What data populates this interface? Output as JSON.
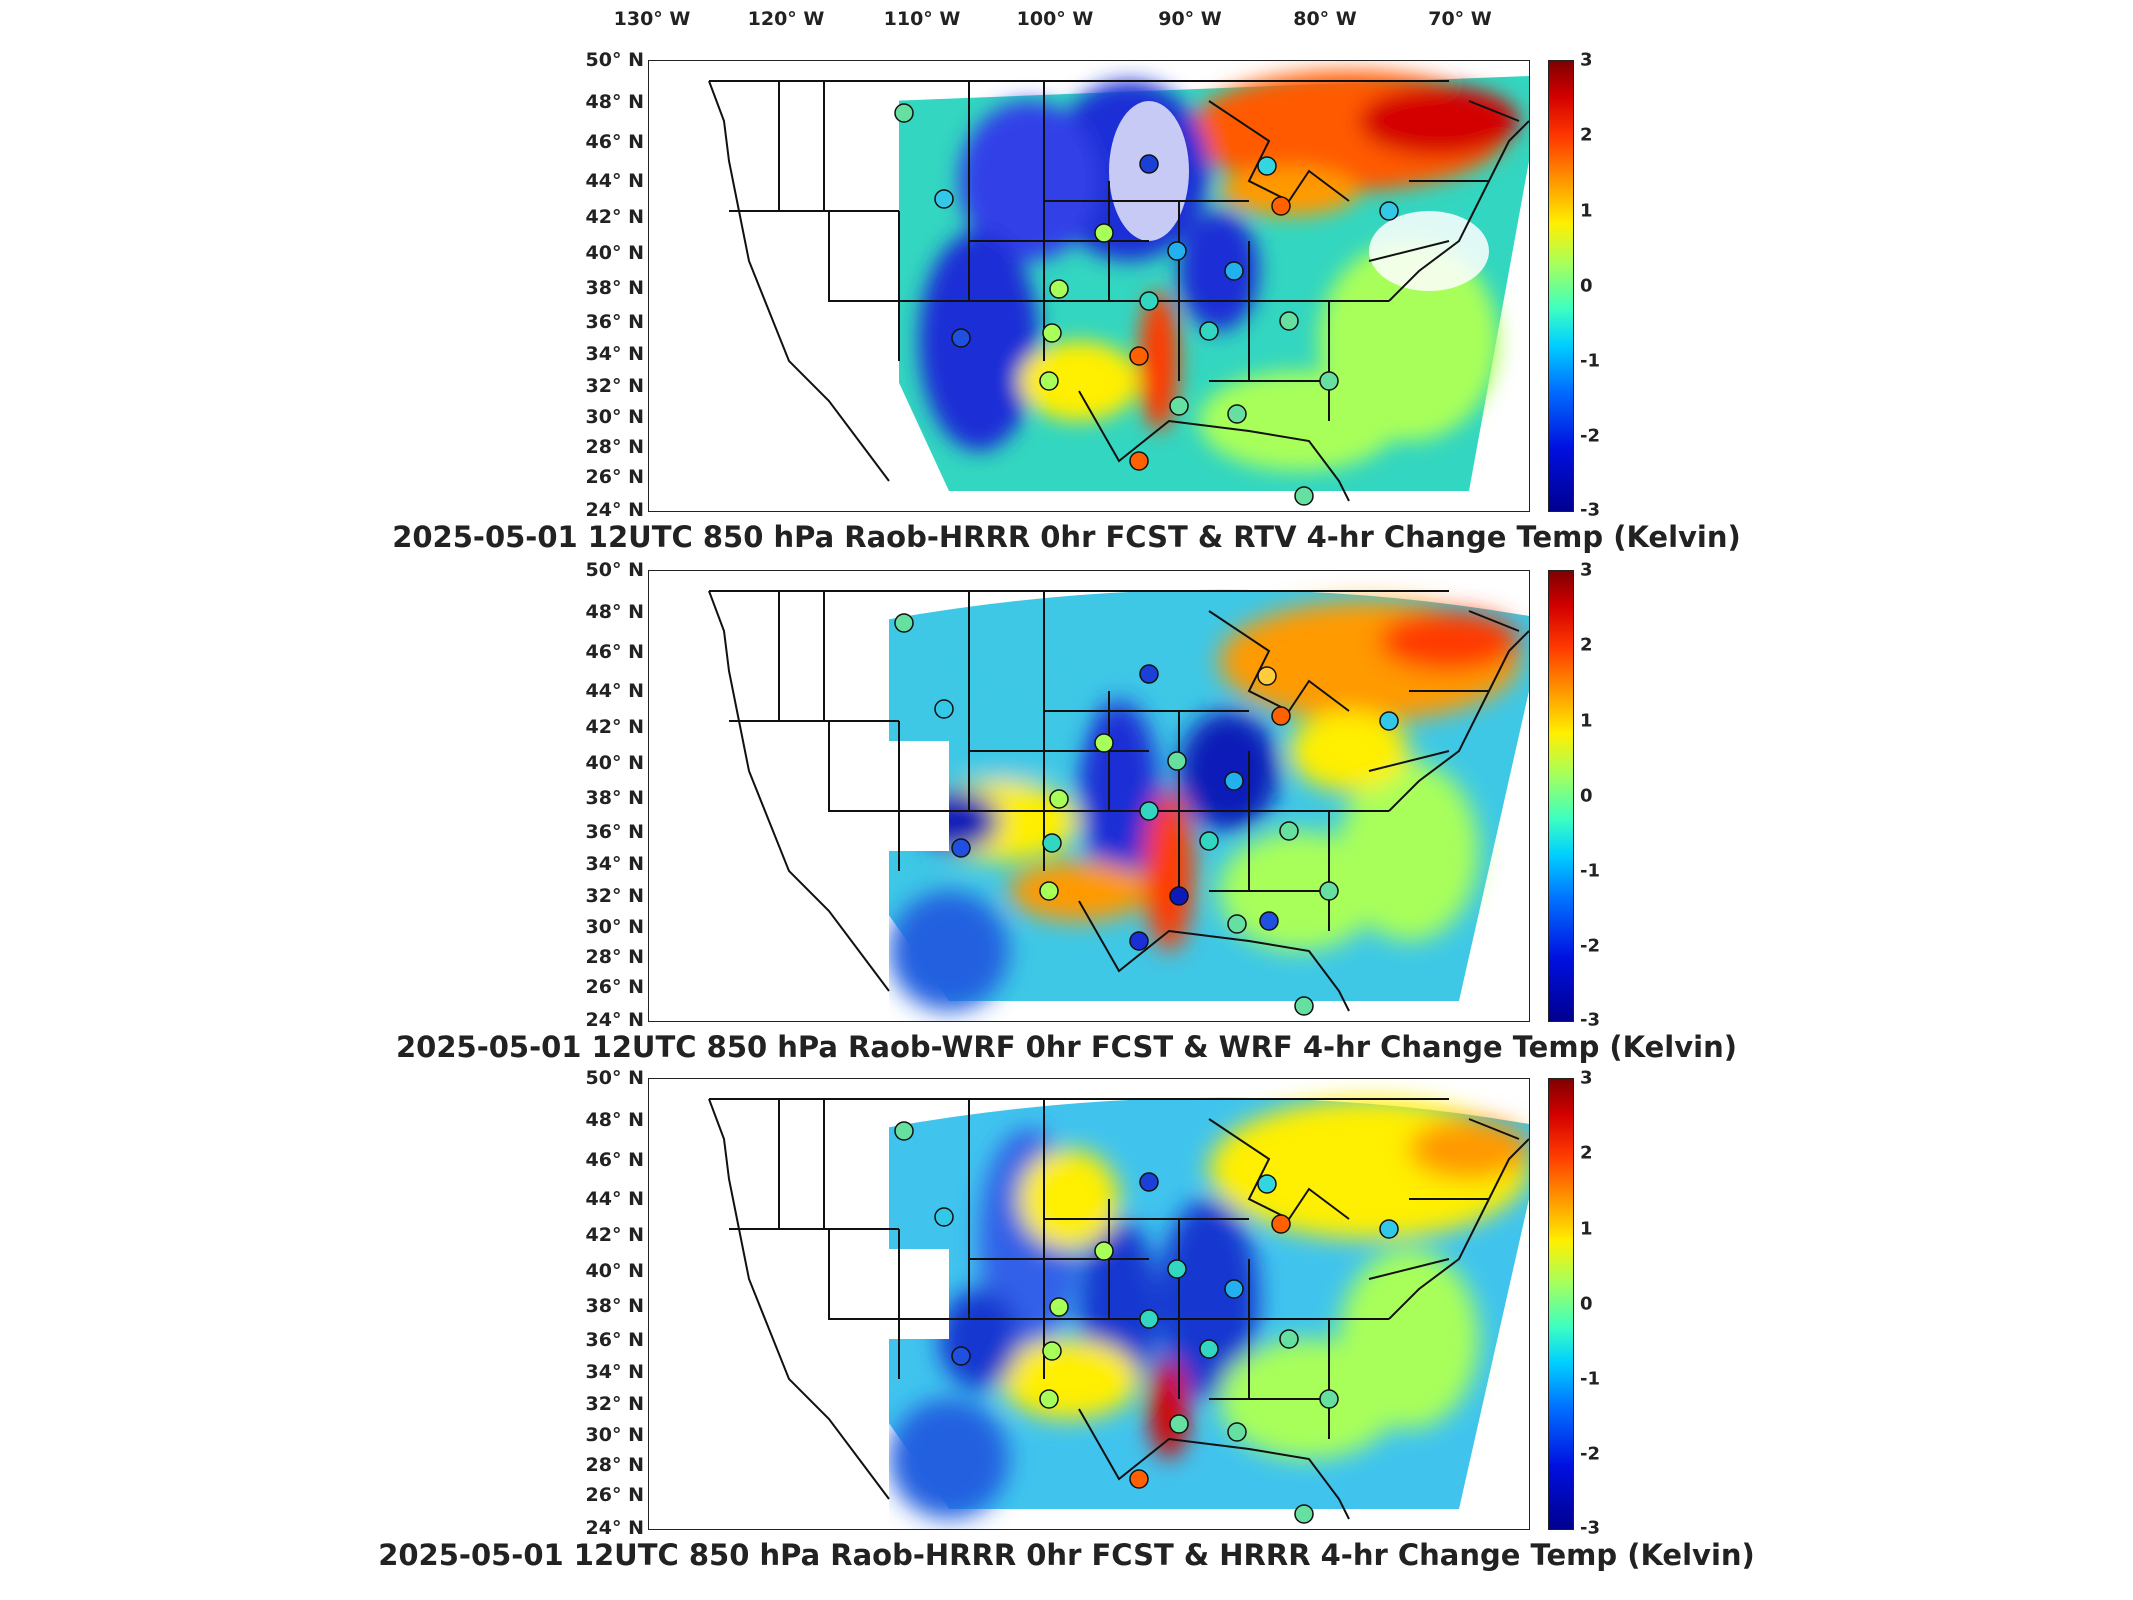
{
  "lon_labels": [
    "130° W",
    "120° W",
    "110° W",
    "100° W",
    "90° W",
    "80° W",
    "70° W"
  ],
  "lat_labels": [
    "50° N",
    "48° N",
    "46° N",
    "44° N",
    "42° N",
    "40° N",
    "38° N",
    "36° N",
    "34° N",
    "32° N",
    "30° N",
    "28° N",
    "26° N",
    "24° N"
  ],
  "colorbar": {
    "ticks": [
      "3",
      "2",
      "1",
      "0",
      "-1",
      "-2",
      "-3"
    ],
    "range": [
      -3,
      3
    ],
    "units": "Kelvin",
    "colormap": [
      "#00008f",
      "#0010e0",
      "#0070ff",
      "#00d0ff",
      "#3dffc0",
      "#a8ff5a",
      "#ffef00",
      "#ff9a00",
      "#ff3a00",
      "#d40000",
      "#7f0000"
    ]
  },
  "panels": [
    {
      "title": "2025-05-01 12UTC 850 hPa Raob-HRRR 0hr FCST & RTV 4-hr Change Temp (Kelvin)",
      "colors": {
        "background_field": "#33d6c0",
        "hot": "#ff5a00",
        "cold": "#1a2fd6"
      }
    },
    {
      "title": "2025-05-01 12UTC 850 hPa Raob-WRF 0hr FCST & WRF 4-hr Change Temp (Kelvin)",
      "colors": {
        "background_field": "#3ec8e6",
        "hot": "#ff7a10",
        "cold": "#0d1ab8"
      }
    },
    {
      "title": "2025-05-01 12UTC 850 hPa Raob-HRRR 0hr FCST & HRRR 4-hr Change Temp (Kelvin)",
      "colors": {
        "background_field": "#40c4ee",
        "hot": "#ffb000",
        "cold": "#1538d0"
      }
    }
  ]
}
